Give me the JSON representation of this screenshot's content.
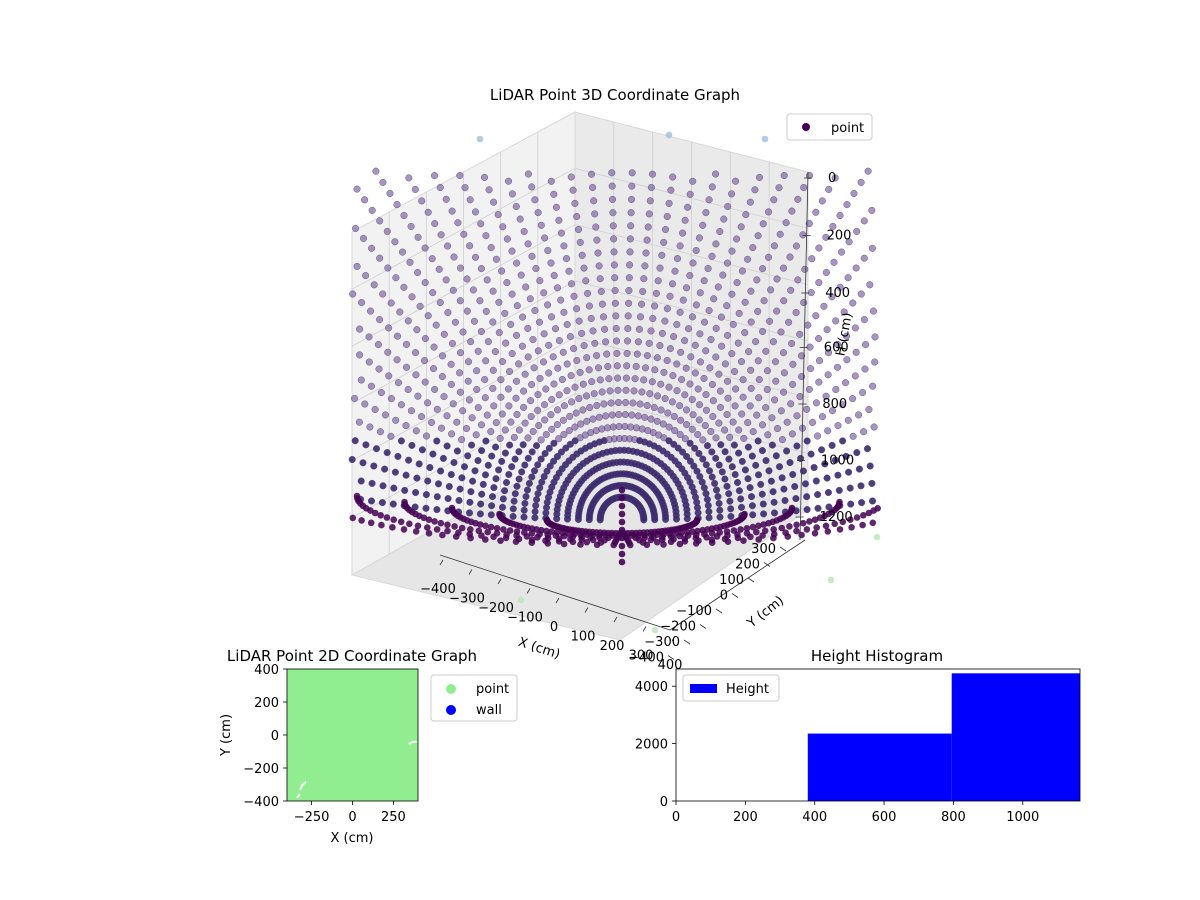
{
  "chart_data": [
    {
      "type": "scatter",
      "projection": "3d",
      "title": "LiDAR Point 3D Coordinate Graph",
      "xlabel": "X (cm)",
      "ylabel": "Y (cm)",
      "zlabel": "H (cm)",
      "xticks": [
        "−400",
        "−300",
        "−200",
        "−100",
        "0",
        "100",
        "200",
        "300",
        "400"
      ],
      "yticks": [
        "−400",
        "−300",
        "−200",
        "−100",
        "0",
        "100",
        "200",
        "300"
      ],
      "zticks": [
        "0",
        "200",
        "400",
        "600",
        "800",
        "1000",
        "1200"
      ],
      "xlim": [
        -400,
        400
      ],
      "ylim": [
        -400,
        400
      ],
      "zlim": [
        0,
        1200
      ],
      "zinverted": true,
      "legend": {
        "entries": [
          "point"
        ],
        "placement": "top-right"
      },
      "colors": {
        "point": "#440154",
        "series_far": "#7a5a9c",
        "series_near": "#3b2a6e",
        "stray": "#90ee90"
      },
      "grid": true,
      "description_of_points": "radial fan of LiDAR rays from center, depth increasing outward"
    },
    {
      "type": "scatter",
      "title": "LiDAR Point 2D Coordinate Graph",
      "xlabel": "X (cm)",
      "ylabel": "Y (cm)",
      "xticks": [
        -250,
        0,
        250
      ],
      "yticks": [
        -400,
        -200,
        0,
        200,
        400
      ],
      "xlim": [
        -400,
        400
      ],
      "ylim": [
        -400,
        400
      ],
      "legend": {
        "entries": [
          "point",
          "wall"
        ],
        "placement": "outside-right"
      },
      "colors": {
        "point": "#90ee90",
        "wall": "#0000ff"
      }
    },
    {
      "type": "bar",
      "title": "Height Histogram",
      "xlabel": "",
      "ylabel": "",
      "xticks": [
        0,
        200,
        400,
        600,
        800,
        1000
      ],
      "yticks": [
        0,
        2000,
        4000
      ],
      "xlim": [
        0,
        1165
      ],
      "ylim": [
        0,
        4600
      ],
      "bins": [
        {
          "from": 0,
          "to": 380,
          "count": 0
        },
        {
          "from": 380,
          "to": 795,
          "count": 2350
        },
        {
          "from": 795,
          "to": 1165,
          "count": 4450
        }
      ],
      "legend": {
        "entries": [
          "Height"
        ],
        "placement": "top-left"
      },
      "colors": {
        "bar": "#0000ff"
      }
    }
  ]
}
